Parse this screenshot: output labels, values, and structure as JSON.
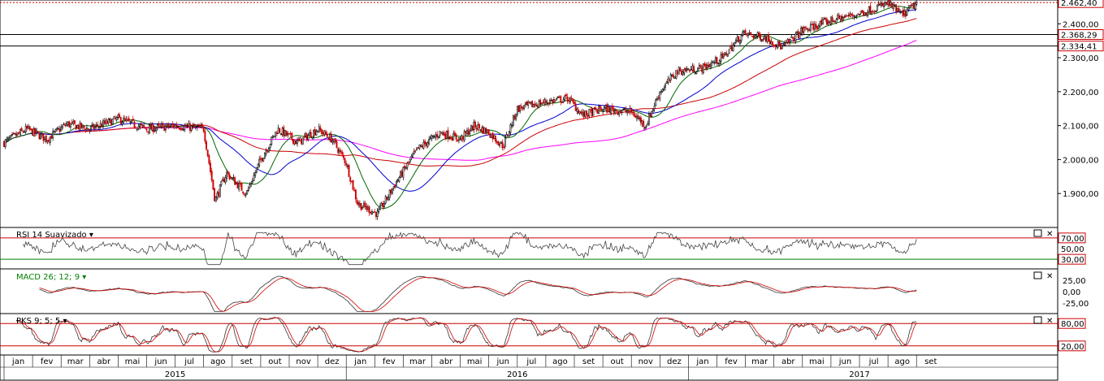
{
  "colors": {
    "candle_up": "#000000",
    "candle_down": "#cc0000",
    "sma_fast": "#006600",
    "sma_mid": "#0000cc",
    "sma_long": "#cc0000",
    "sma_200": "#ff00ff",
    "rsi_line": "#444444",
    "level_red": "#cc0000",
    "level_green": "#008000",
    "macd": "#333333",
    "macd_signal": "#cc0000",
    "pks_k": "#333333",
    "pks_d": "#cc0000"
  },
  "chart_data": [
    {
      "type": "candlestick",
      "panel": "price",
      "title": "",
      "ylim": [
        1800,
        2470
      ],
      "y_ticks": [
        "2.400,00",
        "2.300,00",
        "2.200,00",
        "2.100,00",
        "2.000,00",
        "1.900,00"
      ],
      "price_tags": [
        "2.462,40",
        "2.368,29",
        "2.334,41"
      ],
      "price_levels": [
        2462.4,
        2368.29,
        2334.41
      ],
      "x_months": [
        "jan",
        "fev",
        "mar",
        "abr",
        "mai",
        "jun",
        "jul",
        "ago",
        "set",
        "out",
        "nov",
        "dez",
        "jan",
        "fev",
        "mar",
        "abr",
        "mai",
        "jun",
        "jul",
        "ago",
        "set",
        "out",
        "nov",
        "dez",
        "jan",
        "fev",
        "mar",
        "abr",
        "mai",
        "jun",
        "jul",
        "ago",
        "set"
      ],
      "x_years": [
        "2015",
        "2016",
        "2017"
      ],
      "anchors": [
        {
          "m": 0.0,
          "v": 2050
        },
        {
          "m": 0.8,
          "v": 2090
        },
        {
          "m": 1.5,
          "v": 2060
        },
        {
          "m": 2.2,
          "v": 2105
        },
        {
          "m": 3.0,
          "v": 2090
        },
        {
          "m": 4.0,
          "v": 2120
        },
        {
          "m": 5.0,
          "v": 2090
        },
        {
          "m": 6.0,
          "v": 2100
        },
        {
          "m": 7.0,
          "v": 2090
        },
        {
          "m": 7.4,
          "v": 1880
        },
        {
          "m": 7.8,
          "v": 1960
        },
        {
          "m": 8.5,
          "v": 1900
        },
        {
          "m": 9.0,
          "v": 2000
        },
        {
          "m": 9.6,
          "v": 2090
        },
        {
          "m": 10.3,
          "v": 2050
        },
        {
          "m": 11.0,
          "v": 2090
        },
        {
          "m": 11.5,
          "v": 2060
        },
        {
          "m": 12.0,
          "v": 1990
        },
        {
          "m": 12.4,
          "v": 1870
        },
        {
          "m": 13.1,
          "v": 1840
        },
        {
          "m": 13.8,
          "v": 1940
        },
        {
          "m": 14.5,
          "v": 2030
        },
        {
          "m": 15.3,
          "v": 2080
        },
        {
          "m": 16.0,
          "v": 2060
        },
        {
          "m": 16.5,
          "v": 2100
        },
        {
          "m": 17.0,
          "v": 2080
        },
        {
          "m": 17.5,
          "v": 2040
        },
        {
          "m": 18.0,
          "v": 2150
        },
        {
          "m": 19.0,
          "v": 2170
        },
        {
          "m": 19.8,
          "v": 2180
        },
        {
          "m": 20.3,
          "v": 2130
        },
        {
          "m": 21.0,
          "v": 2150
        },
        {
          "m": 22.0,
          "v": 2140
        },
        {
          "m": 22.5,
          "v": 2100
        },
        {
          "m": 23.0,
          "v": 2200
        },
        {
          "m": 23.6,
          "v": 2260
        },
        {
          "m": 24.5,
          "v": 2270
        },
        {
          "m": 25.2,
          "v": 2300
        },
        {
          "m": 25.9,
          "v": 2370
        },
        {
          "m": 26.7,
          "v": 2360
        },
        {
          "m": 27.3,
          "v": 2330
        },
        {
          "m": 28.0,
          "v": 2380
        },
        {
          "m": 29.0,
          "v": 2410
        },
        {
          "m": 30.0,
          "v": 2430
        },
        {
          "m": 31.0,
          "v": 2460
        },
        {
          "m": 31.5,
          "v": 2425
        },
        {
          "m": 32.0,
          "v": 2460
        }
      ]
    },
    {
      "type": "line",
      "panel": "rsi",
      "label": "RSI 14 Suavizado",
      "y_ticks": [
        "70,00",
        "50,00",
        "30,00"
      ],
      "ylim": [
        15,
        85
      ],
      "levels": [
        70,
        30
      ]
    },
    {
      "type": "line",
      "panel": "macd",
      "label": "MACD 26; 12; 9",
      "y_ticks": [
        "25,00",
        "0,00",
        "-25,00"
      ],
      "ylim": [
        -45,
        45
      ]
    },
    {
      "type": "line",
      "panel": "stochastic",
      "label": "PKS 9; 5; 5",
      "y_ticks": [
        "80,00",
        "20,00"
      ],
      "ylim": [
        0,
        100
      ],
      "levels": [
        80,
        20
      ]
    }
  ],
  "panels": {
    "rsi_label": "RSI 14 Suavizado",
    "macd_label": "MACD 26; 12; 9",
    "pks_label": "PKS 9; 5; 5"
  },
  "icons": [
    "maximize-icon",
    "close-icon",
    "dropdown-arrow-icon"
  ]
}
